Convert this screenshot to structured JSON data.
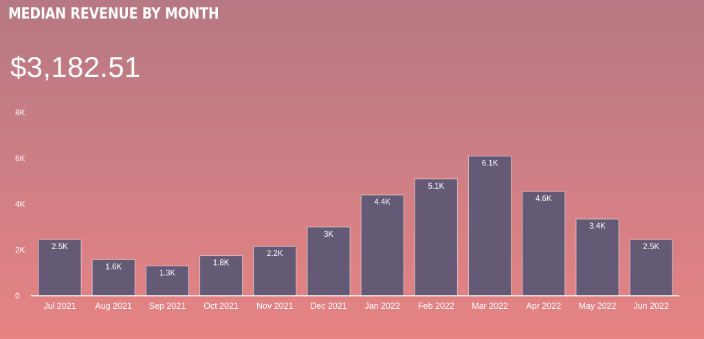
{
  "header": {
    "title": "MEDIAN REVENUE BY MONTH",
    "kpi_value": "$3,182.51"
  },
  "colors": {
    "bar": "#645a75",
    "text": "#ffffff",
    "baseline": "#ffffff"
  },
  "chart_data": {
    "type": "bar",
    "title": "",
    "xlabel": "",
    "ylabel": "",
    "categories": [
      "Jul 2021",
      "Aug 2021",
      "Sep 2021",
      "Oct 2021",
      "Nov 2021",
      "Dec 2021",
      "Jan 2022",
      "Feb 2022",
      "Mar 2022",
      "Apr 2022",
      "May 2022",
      "Jun 2022"
    ],
    "values": [
      2450,
      1580,
      1300,
      1750,
      2150,
      3000,
      4400,
      5100,
      6100,
      4550,
      3350,
      2450
    ],
    "data_labels": [
      "2.5K",
      "1.6K",
      "1.3K",
      "1.8K",
      "2.2K",
      "3K",
      "4.4K",
      "5.1K",
      "6.1K",
      "4.6K",
      "3.4K",
      "2.5K"
    ],
    "ylim": [
      0,
      8000
    ],
    "yticks": [
      0,
      2000,
      4000,
      6000,
      8000
    ],
    "ytick_labels": [
      "0",
      "2K",
      "4K",
      "6K",
      "8K"
    ],
    "grid": false,
    "legend": "none"
  }
}
